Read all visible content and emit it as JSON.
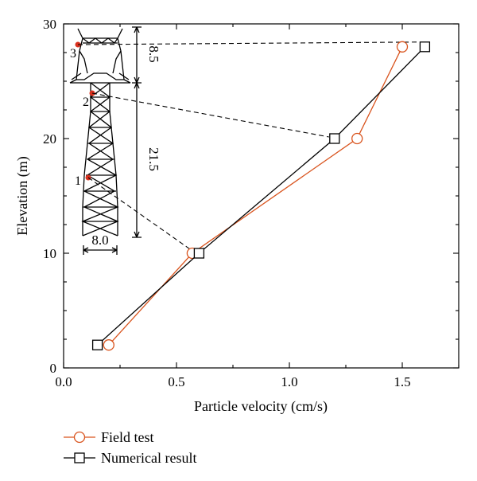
{
  "chart_data": {
    "type": "line",
    "title": "",
    "xlabel": "Particle velocity (cm/s)",
    "ylabel": "Elevation (m)",
    "xlim": [
      0.0,
      1.75
    ],
    "ylim": [
      0,
      30
    ],
    "x_ticks": [
      "0.0",
      "0.5",
      "1.0",
      "1.5"
    ],
    "y_ticks": [
      "0",
      "10",
      "20",
      "30"
    ],
    "grid": false,
    "legend_position": "bottom-left",
    "series": [
      {
        "name": "Field test",
        "marker": "circle",
        "color": "#d9541e",
        "x": [
          0.2,
          0.57,
          1.3,
          1.5
        ],
        "y": [
          2,
          10,
          20,
          28
        ]
      },
      {
        "name": "Numerical result",
        "marker": "square",
        "color": "#000000",
        "x": [
          0.15,
          0.6,
          1.2,
          1.6
        ],
        "y": [
          2,
          10,
          20,
          28
        ]
      }
    ],
    "inset": {
      "description": "transmission tower",
      "point_labels": [
        "1",
        "2",
        "3"
      ],
      "point_color": "#d9301e",
      "dimensions": {
        "upper_height": "8.5",
        "body_height": "21.5",
        "base_width": "8.0"
      }
    }
  }
}
